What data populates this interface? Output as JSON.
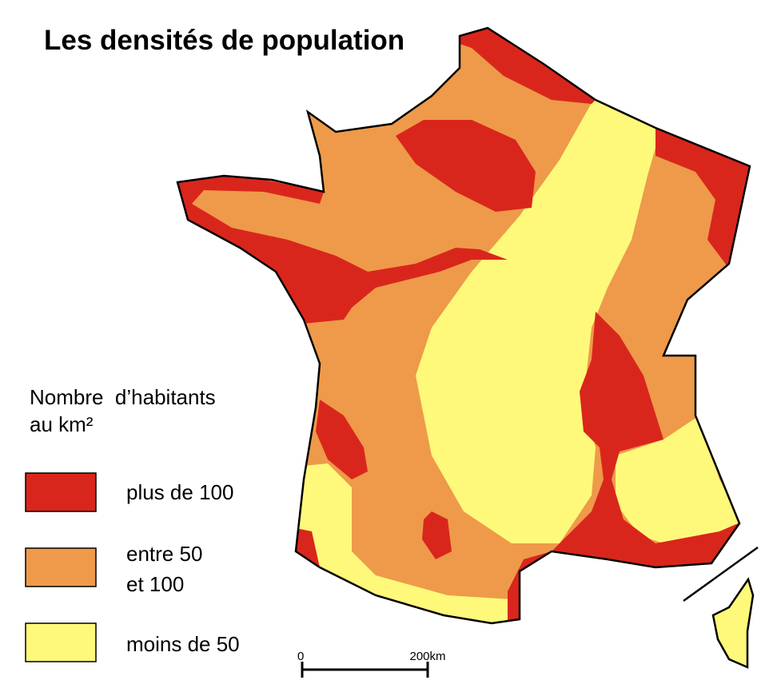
{
  "title": "Les densités de population",
  "legend": {
    "title": [
      "Nombre  d’habitants",
      "au km²"
    ],
    "items": [
      {
        "lines": [
          "plus de 100"
        ]
      },
      {
        "lines": [
          "entre 50",
          "et 100"
        ]
      },
      {
        "lines": [
          "moins de 50"
        ]
      }
    ]
  },
  "scale": {
    "start": "0",
    "end": "200km"
  }
}
